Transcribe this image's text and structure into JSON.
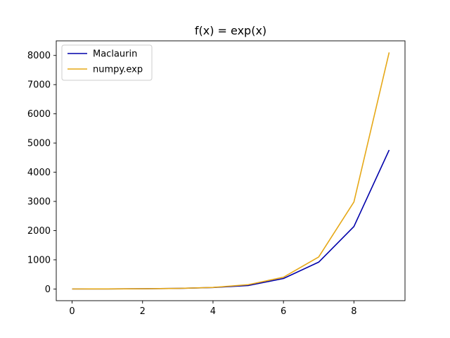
{
  "chart_data": {
    "type": "line",
    "title": "f(x) = exp(x)",
    "xlabel": "",
    "ylabel": "",
    "x": [
      0,
      1,
      2,
      3,
      4,
      5,
      6,
      7,
      8,
      9
    ],
    "xlim": [
      -0.45,
      9.45
    ],
    "ylim": [
      -400,
      8500
    ],
    "xticks": [
      0,
      2,
      4,
      6,
      8
    ],
    "yticks": [
      0,
      1000,
      2000,
      3000,
      4000,
      5000,
      6000,
      7000,
      8000
    ],
    "grid": false,
    "legend_position": "top-left",
    "series": [
      {
        "name": "Maclaurin",
        "color": "#0000aa",
        "values": [
          1,
          2.7,
          7.4,
          20,
          50,
          120,
          360,
          920,
          2140,
          4760
        ]
      },
      {
        "name": "numpy.exp",
        "color": "#e6a817",
        "values": [
          1,
          2.7,
          7.4,
          20.1,
          54.6,
          148.4,
          403.4,
          1096.6,
          2981,
          8103.1
        ]
      }
    ]
  }
}
